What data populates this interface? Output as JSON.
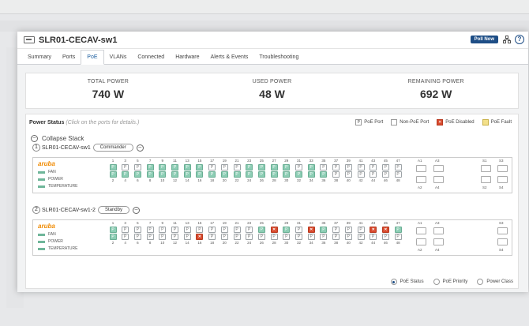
{
  "window": {
    "title": "SLR01-CECAV-sw1",
    "poll_label": "Poll Now",
    "help": "?"
  },
  "tabs": [
    "Summary",
    "Ports",
    "PoE",
    "VLANs",
    "Connected",
    "Hardware",
    "Alerts & Events",
    "Troubleshooting"
  ],
  "active_tab": "PoE",
  "stats": [
    {
      "label": "TOTAL POWER",
      "value": "740 W"
    },
    {
      "label": "USED POWER",
      "value": "48 W"
    },
    {
      "label": "REMAINING POWER",
      "value": "692 W"
    }
  ],
  "power_status": {
    "title": "Power Status",
    "hint": "(Click on the ports for details.)"
  },
  "legend": [
    {
      "label": "PoE Port",
      "glyph": "P",
      "color": "#ffffff"
    },
    {
      "label": "Non-PoE Port",
      "glyph": "",
      "color": "#ffffff"
    },
    {
      "label": "PoE Disabled",
      "glyph": "✕",
      "color": "#d84a2e"
    },
    {
      "label": "PoE Fault",
      "glyph": "",
      "color": "#f3e08a"
    }
  ],
  "collapse_label": "Collapse Stack",
  "switches": [
    {
      "number": "1",
      "name": "SLR01-CECAV-sw1",
      "role": "Commander",
      "brand": "aruba",
      "leds": [
        "FAN",
        "POWER",
        "TEMPERATURE"
      ],
      "top_ports": [
        "1",
        "3",
        "5",
        "7",
        "9",
        "11",
        "13",
        "15",
        "17",
        "19",
        "21",
        "23",
        "25",
        "27",
        "29",
        "31",
        "33",
        "35",
        "37",
        "39",
        "41",
        "43",
        "45",
        "47"
      ],
      "bottom_ports": [
        "2",
        "4",
        "6",
        "8",
        "10",
        "12",
        "14",
        "16",
        "18",
        "20",
        "22",
        "24",
        "26",
        "28",
        "30",
        "32",
        "34",
        "36",
        "38",
        "40",
        "42",
        "44",
        "46",
        "48"
      ],
      "top_states": [
        "g",
        "p",
        "p",
        "g",
        "g",
        "g",
        "g",
        "g",
        "p",
        "p",
        "p",
        "g",
        "g",
        "g",
        "g",
        "p",
        "g",
        "p",
        "p",
        "p",
        "p",
        "p",
        "p",
        "p"
      ],
      "bottom_states": [
        "g",
        "g",
        "g",
        "g",
        "g",
        "g",
        "g",
        "g",
        "g",
        "g",
        "g",
        "g",
        "g",
        "g",
        "g",
        "g",
        "g",
        "g",
        "p",
        "p",
        "p",
        "p",
        "p",
        "p"
      ],
      "uplinks_top": [
        "A1",
        "A3",
        "S1",
        "S3"
      ],
      "uplinks_bottom": [
        "A2",
        "A4",
        "S2",
        "S4"
      ]
    },
    {
      "number": "2",
      "name": "SLR01-CECAV-sw1-2",
      "role": "Standby",
      "brand": "aruba",
      "leds": [
        "FAN",
        "POWER",
        "TEMPERATURE"
      ],
      "top_ports": [
        "1",
        "3",
        "5",
        "7",
        "9",
        "11",
        "13",
        "15",
        "17",
        "19",
        "21",
        "23",
        "25",
        "27",
        "29",
        "31",
        "33",
        "35",
        "37",
        "39",
        "41",
        "43",
        "45",
        "47"
      ],
      "bottom_ports": [
        "2",
        "4",
        "6",
        "8",
        "10",
        "12",
        "14",
        "16",
        "18",
        "20",
        "22",
        "24",
        "26",
        "28",
        "30",
        "32",
        "34",
        "36",
        "38",
        "40",
        "42",
        "44",
        "46",
        "48"
      ],
      "top_states": [
        "g",
        "p",
        "p",
        "p",
        "p",
        "p",
        "p",
        "p",
        "p",
        "p",
        "p",
        "p",
        "g",
        "r",
        "g",
        "p",
        "r",
        "g",
        "p",
        "p",
        "p",
        "r",
        "r",
        "g"
      ],
      "bottom_states": [
        "g",
        "p",
        "p",
        "p",
        "p",
        "p",
        "p",
        "r",
        "p",
        "p",
        "p",
        "p",
        "p",
        "p",
        "p",
        "p",
        "p",
        "p",
        "p",
        "p",
        "p",
        "p",
        "p",
        "p"
      ],
      "uplinks_top": [
        "A1",
        "A3",
        "S3"
      ],
      "uplinks_bottom": [
        "A2",
        "A4",
        "S4"
      ]
    }
  ],
  "view_options": [
    {
      "label": "PoE Status",
      "selected": true
    },
    {
      "label": "PoE Priority",
      "selected": false
    },
    {
      "label": "Power Class",
      "selected": false
    }
  ]
}
